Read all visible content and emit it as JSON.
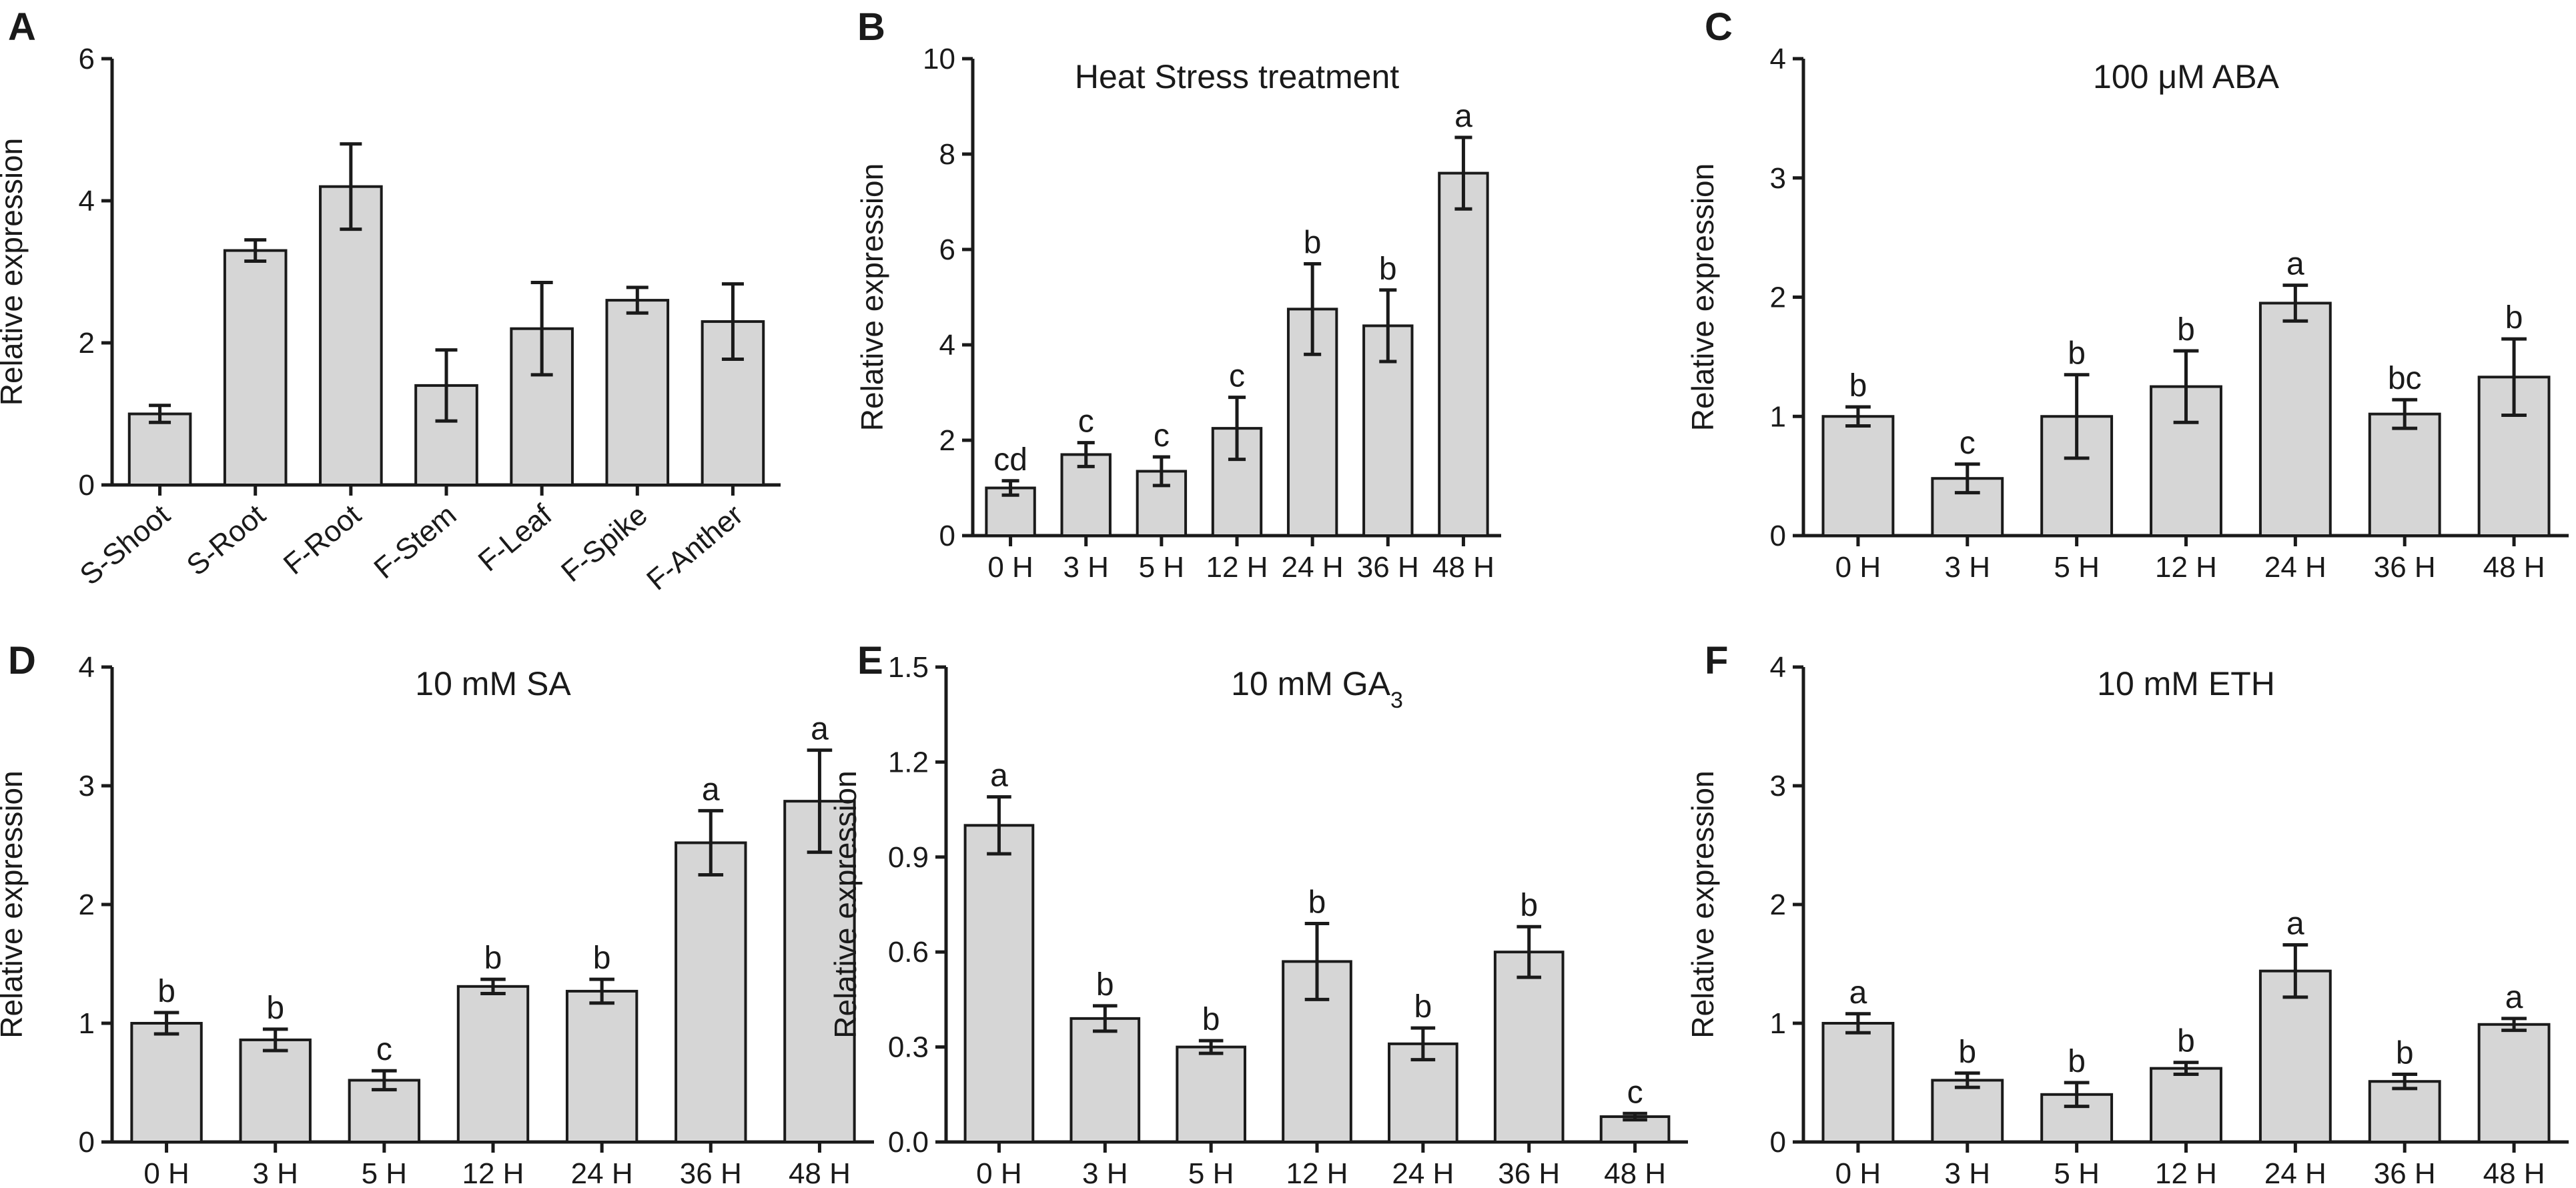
{
  "chart_data": [
    {
      "panel": "A",
      "type": "bar",
      "title": "",
      "ylabel": "Relative expression",
      "xlabel": "",
      "ylim": [
        0,
        6
      ],
      "yticks": [
        "0",
        "2",
        "4",
        "6"
      ],
      "categories": [
        "S-Shoot",
        "S-Root",
        "F-Root",
        "F-Stem",
        "F-Leaf",
        "F-Spike",
        "F-Anther"
      ],
      "values": [
        1.0,
        3.3,
        4.2,
        1.4,
        2.2,
        2.6,
        2.3
      ],
      "errors": [
        0.12,
        0.15,
        0.6,
        0.5,
        0.65,
        0.18,
        0.53
      ],
      "letters": [
        "",
        "",
        "",
        "",
        "",
        "",
        ""
      ],
      "rotate_ticks": true
    },
    {
      "panel": "B",
      "type": "bar",
      "title": "Heat Stress treatment",
      "ylabel": "Relative expression",
      "xlabel": "",
      "ylim": [
        0,
        10
      ],
      "yticks": [
        "0",
        "2",
        "4",
        "6",
        "8",
        "10"
      ],
      "categories": [
        "0 H",
        "3 H",
        "5 H",
        "12 H",
        "24 H",
        "36 H",
        "48 H"
      ],
      "values": [
        1.0,
        1.7,
        1.35,
        2.25,
        4.75,
        4.4,
        7.6
      ],
      "errors": [
        0.15,
        0.25,
        0.3,
        0.65,
        0.95,
        0.75,
        0.75
      ],
      "letters": [
        "cd",
        "c",
        "c",
        "c",
        "b",
        "b",
        "a"
      ]
    },
    {
      "panel": "C",
      "type": "bar",
      "title": "100 μM ABA",
      "ylabel": "Relative expression",
      "xlabel": "",
      "ylim": [
        0,
        4
      ],
      "yticks": [
        "0",
        "1",
        "2",
        "3",
        "4"
      ],
      "categories": [
        "0 H",
        "3 H",
        "5 H",
        "12 H",
        "24 H",
        "36 H",
        "48 H"
      ],
      "values": [
        1.0,
        0.48,
        1.0,
        1.25,
        1.95,
        1.02,
        1.33
      ],
      "errors": [
        0.08,
        0.12,
        0.35,
        0.3,
        0.15,
        0.12,
        0.32
      ],
      "letters": [
        "b",
        "c",
        "b",
        "b",
        "a",
        "bc",
        "b"
      ]
    },
    {
      "panel": "D",
      "type": "bar",
      "title": "10 mM SA",
      "ylabel": "Relative expression",
      "xlabel": "",
      "ylim": [
        0,
        4
      ],
      "yticks": [
        "0",
        "1",
        "2",
        "3",
        "4"
      ],
      "categories": [
        "0 H",
        "3 H",
        "5 H",
        "12 H",
        "24 H",
        "36 H",
        "48 H"
      ],
      "values": [
        1.0,
        0.86,
        0.52,
        1.31,
        1.27,
        2.52,
        2.87
      ],
      "errors": [
        0.09,
        0.09,
        0.08,
        0.06,
        0.1,
        0.27,
        0.43
      ],
      "letters": [
        "b",
        "b",
        "c",
        "b",
        "b",
        "a",
        "a"
      ]
    },
    {
      "panel": "E",
      "type": "bar",
      "title": "10 mM GA",
      "title_subscript": "3",
      "ylabel": "Relative expression",
      "xlabel": "",
      "ylim": [
        0,
        1.5
      ],
      "yticks": [
        "0.0",
        "0.3",
        "0.6",
        "0.9",
        "1.2",
        "1.5"
      ],
      "categories": [
        "0 H",
        "3 H",
        "5 H",
        "12 H",
        "24 H",
        "36 H",
        "48 H"
      ],
      "values": [
        1.0,
        0.39,
        0.3,
        0.57,
        0.31,
        0.6,
        0.08
      ],
      "errors": [
        0.09,
        0.04,
        0.02,
        0.12,
        0.05,
        0.08,
        0.01
      ],
      "letters": [
        "a",
        "b",
        "b",
        "b",
        "b",
        "b",
        "c"
      ]
    },
    {
      "panel": "F",
      "type": "bar",
      "title": "10 mM ETH",
      "ylabel": "Relative expression",
      "xlabel": "",
      "ylim": [
        0,
        4
      ],
      "yticks": [
        "0",
        "1",
        "2",
        "3",
        "4"
      ],
      "categories": [
        "0 H",
        "3 H",
        "5 H",
        "12 H",
        "24 H",
        "36 H",
        "48 H"
      ],
      "values": [
        1.0,
        0.52,
        0.4,
        0.62,
        1.44,
        0.51,
        0.99
      ],
      "errors": [
        0.08,
        0.06,
        0.1,
        0.05,
        0.22,
        0.06,
        0.05
      ],
      "letters": [
        "a",
        "b",
        "b",
        "b",
        "a",
        "b",
        "a"
      ]
    }
  ],
  "colors": {
    "bar_fill": "#d6d6d6",
    "ink": "#1a1a1a",
    "background": "#ffffff"
  }
}
